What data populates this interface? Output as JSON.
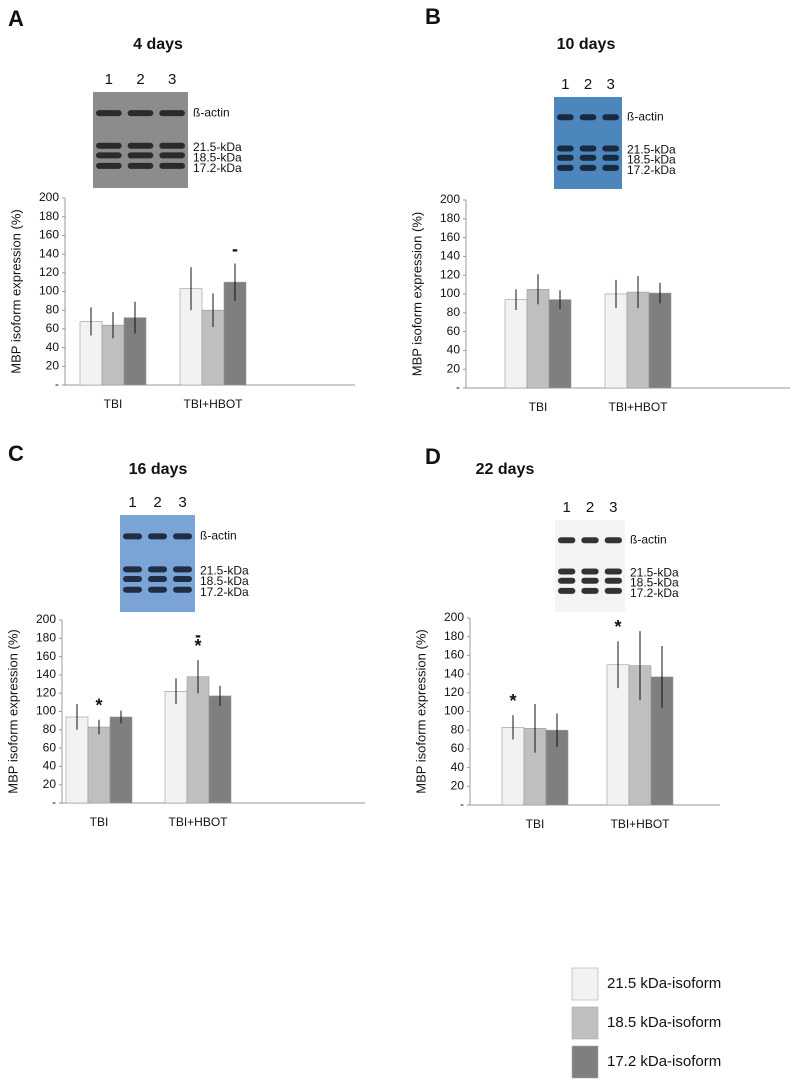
{
  "chart_data": [
    {
      "type": "bar",
      "panel": "A",
      "title": "4 days",
      "blot": {
        "lanes": [
          "1",
          "2",
          "3"
        ],
        "bands": [
          "ß-actin",
          "21.5-kDa",
          "18.5-kDa",
          "17.2-kDa"
        ]
      },
      "y_label": "MBP isoform expression (%)",
      "categories": [
        "TBI",
        "TBI+HBOT"
      ],
      "series": [
        {
          "values": [
            68,
            103
          ],
          "errors": [
            15,
            23
          ]
        },
        {
          "values": [
            64,
            80
          ],
          "errors": [
            14,
            18
          ]
        },
        {
          "values": [
            72,
            110
          ],
          "errors": [
            17,
            20
          ]
        }
      ],
      "annotations": [
        {
          "text": "-",
          "series": 2,
          "category": 1
        }
      ],
      "ylim": [
        0,
        200
      ],
      "yticks": [
        {
          "value": 0,
          "label": "-"
        },
        20,
        40,
        60,
        80,
        100,
        120,
        140,
        160,
        180,
        200
      ]
    },
    {
      "type": "bar",
      "panel": "B",
      "title": "10 days",
      "blot": {
        "lanes": [
          "1",
          "2",
          "3"
        ],
        "bands": [
          "ß-actin",
          "21.5-kDa",
          "18.5-kDa",
          "17.2-kDa"
        ]
      },
      "y_label": "MBP isoform expression (%)",
      "categories": [
        "TBI",
        "TBI+HBOT"
      ],
      "series": [
        {
          "values": [
            94,
            100
          ],
          "errors": [
            11,
            15
          ]
        },
        {
          "values": [
            105,
            102
          ],
          "errors": [
            16,
            17
          ]
        },
        {
          "values": [
            94,
            101
          ],
          "errors": [
            10,
            11
          ]
        }
      ],
      "annotations": [],
      "ylim": [
        0,
        200
      ],
      "yticks": [
        {
          "value": 0,
          "label": "-"
        },
        20,
        40,
        60,
        80,
        100,
        120,
        140,
        160,
        180,
        200
      ]
    },
    {
      "type": "bar",
      "panel": "C",
      "title": "16 days",
      "blot": {
        "lanes": [
          "1",
          "2",
          "3"
        ],
        "bands": [
          "ß-actin",
          "21.5-kDa",
          "18.5-kDa",
          "17.2-kDa"
        ]
      },
      "y_label": "MBP isoform expression (%)",
      "categories": [
        "TBI",
        "TBI+HBOT"
      ],
      "series": [
        {
          "values": [
            94,
            122
          ],
          "errors": [
            14,
            14
          ]
        },
        {
          "values": [
            83,
            138
          ],
          "errors": [
            8,
            18
          ]
        },
        {
          "values": [
            94,
            117
          ],
          "errors": [
            7,
            11
          ]
        }
      ],
      "annotations": [
        {
          "text": "*",
          "series": 1,
          "category": 0
        },
        {
          "text": "*",
          "series": 1,
          "category": 1
        },
        {
          "text": "-",
          "series": 1,
          "category": 1
        }
      ],
      "ylim": [
        0,
        200
      ],
      "yticks": [
        {
          "value": 0,
          "label": "-"
        },
        20,
        40,
        60,
        80,
        100,
        120,
        140,
        160,
        180,
        200
      ]
    },
    {
      "type": "bar",
      "panel": "D",
      "title": "22 days",
      "blot": {
        "lanes": [
          "1",
          "2",
          "3"
        ],
        "bands": [
          "ß-actin",
          "21.5-kDa",
          "18.5-kDa",
          "17.2-kDa"
        ]
      },
      "y_label": "MBP isoform expression (%)",
      "categories": [
        "TBI",
        "TBI+HBOT"
      ],
      "series": [
        {
          "values": [
            83,
            150
          ],
          "errors": [
            13,
            25
          ]
        },
        {
          "values": [
            82,
            149
          ],
          "errors": [
            26,
            37
          ]
        },
        {
          "values": [
            80,
            137
          ],
          "errors": [
            18,
            33
          ]
        }
      ],
      "annotations": [
        {
          "text": "*",
          "series": 0,
          "category": 0
        },
        {
          "text": "*",
          "series": 0,
          "category": 1
        }
      ],
      "ylim": [
        0,
        200
      ],
      "yticks": [
        {
          "value": 0,
          "label": "-"
        },
        20,
        40,
        60,
        80,
        100,
        120,
        140,
        160,
        180,
        200
      ]
    }
  ],
  "legend": {
    "items": [
      {
        "name": "21.5 kDa-isoform",
        "color": "#f2f2f2"
      },
      {
        "name": "18.5 kDa-isoform",
        "color": "#bfbfbf"
      },
      {
        "name": "17.2 kDa-isoform",
        "color": "#7f7f7f"
      }
    ]
  }
}
